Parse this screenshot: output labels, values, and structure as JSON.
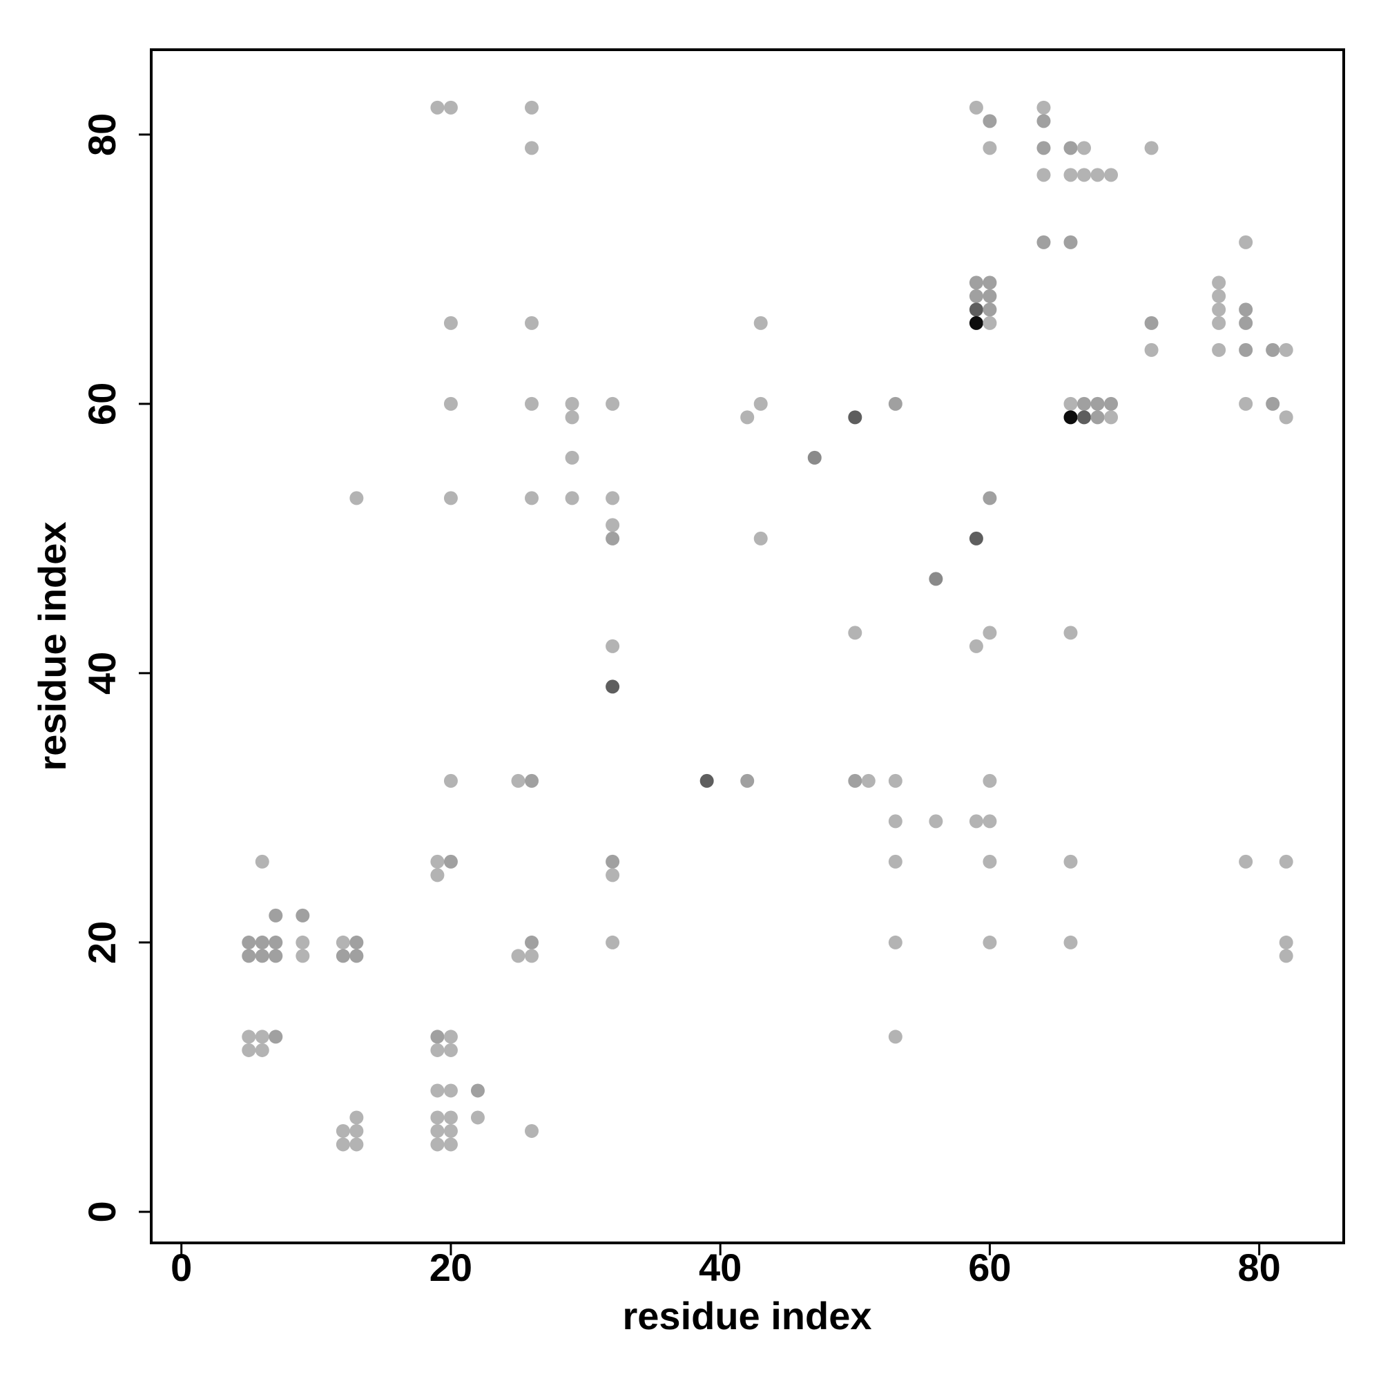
{
  "chart_data": {
    "type": "scatter",
    "x_label": "residue index",
    "y_label": "residue index",
    "xlim": [
      -2.24,
      86.27
    ],
    "ylim": [
      -2.31,
      86.3
    ],
    "xticks": [
      0,
      20,
      40,
      60,
      80
    ],
    "yticks": [
      0,
      20,
      40,
      60,
      80
    ],
    "grid": false,
    "x": [
      19,
      20,
      26,
      59,
      64,
      60,
      64,
      26,
      60,
      64,
      66,
      67,
      72,
      64,
      66,
      67,
      68,
      69,
      64,
      66,
      79,
      59,
      60,
      77,
      59,
      60,
      77,
      59,
      60,
      77,
      79,
      20,
      26,
      43,
      59,
      60,
      72,
      77,
      79,
      72,
      77,
      79,
      81,
      82,
      20,
      26,
      29,
      32,
      43,
      53,
      66,
      67,
      68,
      69,
      79,
      81,
      29,
      42,
      50,
      66,
      67,
      68,
      69,
      82,
      29,
      47,
      13,
      20,
      26,
      29,
      32,
      60,
      32,
      32,
      43,
      59,
      56,
      50,
      60,
      66,
      32,
      59,
      32,
      20,
      25,
      26,
      39,
      42,
      50,
      51,
      53,
      60,
      53,
      56,
      59,
      60,
      6,
      19,
      20,
      32,
      53,
      60,
      66,
      79,
      82,
      19,
      32,
      7,
      9,
      5,
      6,
      7,
      9,
      12,
      13,
      26,
      32,
      53,
      60,
      66,
      82,
      5,
      6,
      7,
      9,
      12,
      13,
      25,
      26,
      82,
      5,
      6,
      7,
      19,
      20,
      53,
      5,
      6,
      19,
      20,
      19,
      20,
      22,
      13,
      19,
      20,
      22,
      12,
      13,
      19,
      20,
      26,
      12,
      13,
      19,
      20
    ],
    "values": [
      82,
      82,
      82,
      82,
      82,
      81,
      81,
      79,
      79,
      79,
      79,
      79,
      79,
      77,
      77,
      77,
      77,
      77,
      72,
      72,
      72,
      69,
      69,
      69,
      68,
      68,
      68,
      67,
      67,
      67,
      67,
      66,
      66,
      66,
      66,
      66,
      66,
      66,
      66,
      64,
      64,
      64,
      64,
      64,
      60,
      60,
      60,
      60,
      60,
      60,
      60,
      60,
      60,
      60,
      60,
      60,
      59,
      59,
      59,
      59,
      59,
      59,
      59,
      59,
      56,
      56,
      53,
      53,
      53,
      53,
      53,
      53,
      51,
      50,
      50,
      50,
      47,
      43,
      43,
      43,
      42,
      42,
      39,
      32,
      32,
      32,
      32,
      32,
      32,
      32,
      32,
      32,
      29,
      29,
      29,
      29,
      26,
      26,
      26,
      26,
      26,
      26,
      26,
      26,
      26,
      25,
      25,
      22,
      22,
      20,
      20,
      20,
      20,
      20,
      20,
      20,
      20,
      20,
      20,
      20,
      20,
      19,
      19,
      19,
      19,
      19,
      19,
      19,
      19,
      19,
      13,
      13,
      13,
      13,
      13,
      13,
      12,
      12,
      12,
      12,
      9,
      9,
      9,
      7,
      7,
      7,
      7,
      6,
      6,
      6,
      6,
      6,
      5,
      5,
      5,
      5
    ],
    "colors": [
      "#b3b3b3",
      "#b3b3b3",
      "#b3b3b3",
      "#b3b3b3",
      "#b3b3b3",
      "#a0a0a0",
      "#a0a0a0",
      "#b3b3b3",
      "#b3b3b3",
      "#a0a0a0",
      "#a0a0a0",
      "#b3b3b3",
      "#b3b3b3",
      "#b3b3b3",
      "#b3b3b3",
      "#b3b3b3",
      "#b3b3b3",
      "#b3b3b3",
      "#a0a0a0",
      "#a0a0a0",
      "#b3b3b3",
      "#a0a0a0",
      "#a0a0a0",
      "#b3b3b3",
      "#a0a0a0",
      "#a0a0a0",
      "#b3b3b3",
      "#5e5e5e",
      "#a0a0a0",
      "#b3b3b3",
      "#a0a0a0",
      "#b3b3b3",
      "#b3b3b3",
      "#b3b3b3",
      "#0d0d0d",
      "#b3b3b3",
      "#a0a0a0",
      "#b3b3b3",
      "#a0a0a0",
      "#b3b3b3",
      "#b3b3b3",
      "#a0a0a0",
      "#a0a0a0",
      "#b3b3b3",
      "#b3b3b3",
      "#b3b3b3",
      "#b3b3b3",
      "#b3b3b3",
      "#b3b3b3",
      "#a0a0a0",
      "#b3b3b3",
      "#a0a0a0",
      "#a0a0a0",
      "#a0a0a0",
      "#b3b3b3",
      "#a0a0a0",
      "#b3b3b3",
      "#b3b3b3",
      "#5e5e5e",
      "#0d0d0d",
      "#5e5e5e",
      "#a0a0a0",
      "#b3b3b3",
      "#b3b3b3",
      "#b3b3b3",
      "#8a8a8a",
      "#b3b3b3",
      "#b3b3b3",
      "#b3b3b3",
      "#b3b3b3",
      "#b3b3b3",
      "#a0a0a0",
      "#b3b3b3",
      "#a0a0a0",
      "#b3b3b3",
      "#5e5e5e",
      "#8a8a8a",
      "#b3b3b3",
      "#b3b3b3",
      "#b3b3b3",
      "#b3b3b3",
      "#b3b3b3",
      "#5e5e5e",
      "#b3b3b3",
      "#b3b3b3",
      "#a0a0a0",
      "#5e5e5e",
      "#a0a0a0",
      "#a0a0a0",
      "#b3b3b3",
      "#b3b3b3",
      "#b3b3b3",
      "#b3b3b3",
      "#b3b3b3",
      "#b3b3b3",
      "#b3b3b3",
      "#b3b3b3",
      "#b3b3b3",
      "#a0a0a0",
      "#a0a0a0",
      "#b3b3b3",
      "#b3b3b3",
      "#b3b3b3",
      "#b3b3b3",
      "#b3b3b3",
      "#b3b3b3",
      "#b3b3b3",
      "#a0a0a0",
      "#a0a0a0",
      "#a0a0a0",
      "#a0a0a0",
      "#a0a0a0",
      "#b3b3b3",
      "#b3b3b3",
      "#a0a0a0",
      "#a0a0a0",
      "#b3b3b3",
      "#b3b3b3",
      "#b3b3b3",
      "#b3b3b3",
      "#b3b3b3",
      "#a0a0a0",
      "#a0a0a0",
      "#a0a0a0",
      "#b3b3b3",
      "#a0a0a0",
      "#a0a0a0",
      "#b3b3b3",
      "#b3b3b3",
      "#b3b3b3",
      "#b3b3b3",
      "#b3b3b3",
      "#a0a0a0",
      "#a0a0a0",
      "#b3b3b3",
      "#b3b3b3",
      "#b3b3b3",
      "#b3b3b3",
      "#b3b3b3",
      "#b3b3b3",
      "#b3b3b3",
      "#b3b3b3",
      "#a0a0a0",
      "#b3b3b3",
      "#b3b3b3",
      "#b3b3b3",
      "#b3b3b3",
      "#b3b3b3",
      "#b3b3b3",
      "#b3b3b3",
      "#b3b3b3",
      "#b3b3b3",
      "#b3b3b3",
      "#b3b3b3",
      "#b3b3b3",
      "#b3b3b3"
    ]
  }
}
